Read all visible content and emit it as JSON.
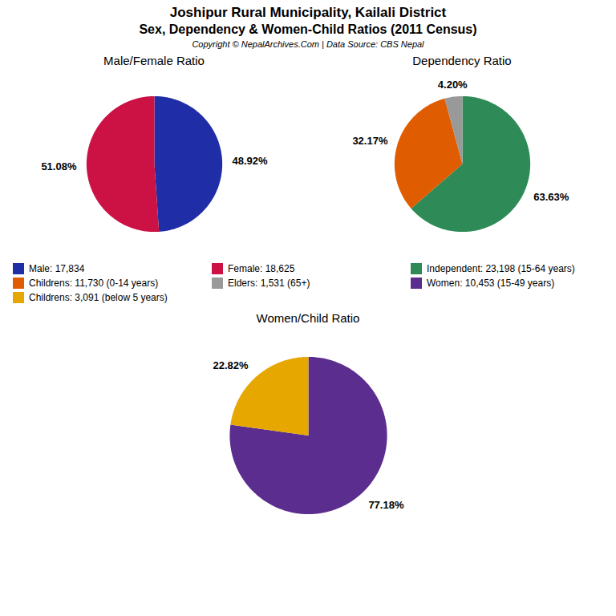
{
  "title": "Joshipur Rural Municipality, Kailali District",
  "subtitle": "Sex, Dependency & Women-Child Ratios (2011 Census)",
  "annotations": [
    "Copyright © NepalArchives.Com | Data Source: CBS Nepal"
  ],
  "legend": "center",
  "chart_data": [
    {
      "type": "pie",
      "title": "Male/Female Ratio",
      "categories": [
        "Male: 17,834",
        "Female: 18,625"
      ],
      "values": [
        48.92,
        51.08
      ],
      "value_labels": [
        "48.92%",
        "51.08%"
      ],
      "colors": [
        "#1f2ea6",
        "#cc1144"
      ],
      "data_labels": true
    },
    {
      "type": "pie",
      "title": "Dependency Ratio",
      "categories": [
        "Independent: 23,198 (15-64 years)",
        "Childrens: 11,730 (0-14 years)",
        "Elders: 1,531 (65+)"
      ],
      "values": [
        63.63,
        32.17,
        4.2
      ],
      "value_labels": [
        "63.63%",
        "32.17%",
        "4.20%"
      ],
      "colors": [
        "#2e8b57",
        "#e05c00",
        "#999999"
      ],
      "data_labels": true
    },
    {
      "type": "pie",
      "title": "Women/Child Ratio",
      "categories": [
        "Women: 10,453 (15-49 years)",
        "Childrens: 3,091 (below 5 years)"
      ],
      "values": [
        77.18,
        22.82
      ],
      "value_labels": [
        "77.18%",
        "22.82%"
      ],
      "colors": [
        "#5b2d8e",
        "#e6a800"
      ],
      "data_labels": true
    }
  ]
}
